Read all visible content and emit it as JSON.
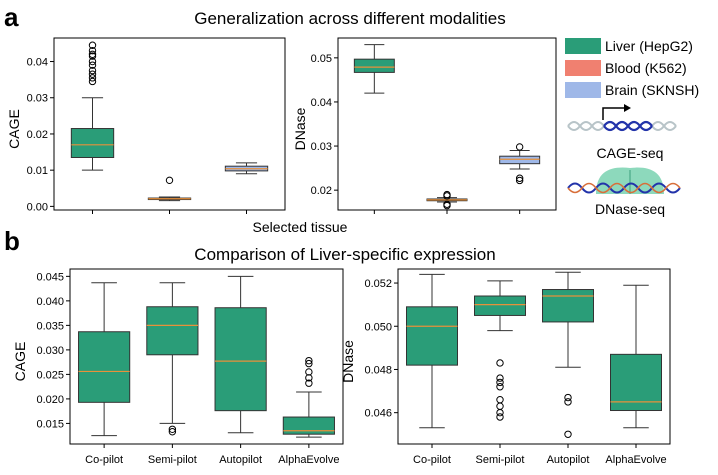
{
  "panel_labels": {
    "a": "a",
    "b": "b"
  },
  "colors": {
    "liver": "#2a9d78",
    "blood": "#f08070",
    "brain": "#9fb8e8",
    "median": "#e8913a",
    "box_edge": "#333333",
    "dna_blue": "#2233aa",
    "dna_grey": "#b8c4c8",
    "nucleosome": "#5cc9a0"
  },
  "legend": {
    "items": [
      {
        "label": "Liver (HepG2)",
        "color": "#2a9d78"
      },
      {
        "label": "Blood (K562)",
        "color": "#f08070"
      },
      {
        "label": "Brain (SKNSH)",
        "color": "#9fb8e8"
      }
    ]
  },
  "side_labels": {
    "cage_seq": "CAGE-seq",
    "dnase_seq": "DNase-seq"
  },
  "chart_data": [
    {
      "id": "a-cage",
      "type": "box",
      "title": "Generalization across different modalities",
      "xlabel": "Selected tissue",
      "ylabel": "CAGE",
      "ylim": [
        -0.001,
        0.0465
      ],
      "yticks": [
        0.0,
        0.01,
        0.02,
        0.03,
        0.04
      ],
      "ytick_labels": [
        "0.00",
        "0.01",
        "0.02",
        "0.03",
        "0.04"
      ],
      "categories": [
        "Liver (HepG2)",
        "Blood (K562)",
        "Brain (SKNSH)"
      ],
      "show_xtick_labels": false,
      "box_width": 0.55,
      "boxes": [
        {
          "color": "#2a9d78",
          "whislo": 0.01,
          "q1": 0.0135,
          "med": 0.017,
          "q3": 0.0215,
          "whishi": 0.03,
          "fliers": [
            0.0345,
            0.0355,
            0.0365,
            0.0375,
            0.039,
            0.04,
            0.0415,
            0.042,
            0.043,
            0.0445
          ]
        },
        {
          "color": "#f08070",
          "whislo": 0.0016,
          "q1": 0.0019,
          "med": 0.0021,
          "q3": 0.0023,
          "whishi": 0.0026,
          "fliers": [
            0.0072
          ]
        },
        {
          "color": "#9fb8e8",
          "whislo": 0.009,
          "q1": 0.0098,
          "med": 0.0104,
          "q3": 0.0111,
          "whishi": 0.012,
          "fliers": []
        }
      ]
    },
    {
      "id": "a-dnase",
      "type": "box",
      "title": "",
      "xlabel": "",
      "ylabel": "DNase",
      "ylim": [
        0.0155,
        0.0545
      ],
      "yticks": [
        0.02,
        0.03,
        0.04,
        0.05
      ],
      "ytick_labels": [
        "0.02",
        "0.03",
        "0.04",
        "0.05"
      ],
      "categories": [
        "Liver (HepG2)",
        "Blood (K562)",
        "Brain (SKNSH)"
      ],
      "show_xtick_labels": false,
      "box_width": 0.55,
      "boxes": [
        {
          "color": "#2a9d78",
          "whislo": 0.042,
          "q1": 0.0467,
          "med": 0.0479,
          "q3": 0.0497,
          "whishi": 0.053,
          "fliers": []
        },
        {
          "color": "#f08070",
          "whislo": 0.0173,
          "q1": 0.0176,
          "med": 0.0178,
          "q3": 0.018,
          "whishi": 0.0183,
          "fliers": [
            0.0165,
            0.0168,
            0.0187,
            0.019
          ]
        },
        {
          "color": "#9fb8e8",
          "whislo": 0.0248,
          "q1": 0.026,
          "med": 0.027,
          "q3": 0.0277,
          "whishi": 0.029,
          "fliers": [
            0.0222,
            0.0227,
            0.0298
          ]
        }
      ]
    },
    {
      "id": "b-cage",
      "type": "box",
      "title": "Comparison of Liver-specific expression",
      "xlabel": "",
      "ylabel": "CAGE",
      "ylim": [
        0.0108,
        0.0465
      ],
      "yticks": [
        0.015,
        0.02,
        0.025,
        0.03,
        0.035,
        0.04,
        0.045
      ],
      "ytick_labels": [
        "0.015",
        "0.020",
        "0.025",
        "0.030",
        "0.035",
        "0.040",
        "0.045"
      ],
      "categories": [
        "Co-pilot",
        "Semi-pilot",
        "Autopilot",
        "AlphaEvolve"
      ],
      "show_xtick_labels": true,
      "box_width": 0.75,
      "boxes": [
        {
          "color": "#2a9d78",
          "whislo": 0.0125,
          "q1": 0.0193,
          "med": 0.0256,
          "q3": 0.0337,
          "whishi": 0.0437,
          "fliers": []
        },
        {
          "color": "#2a9d78",
          "whislo": 0.015,
          "q1": 0.029,
          "med": 0.035,
          "q3": 0.0388,
          "whishi": 0.0437,
          "fliers": [
            0.0133,
            0.0138
          ]
        },
        {
          "color": "#2a9d78",
          "whislo": 0.0131,
          "q1": 0.0176,
          "med": 0.0277,
          "q3": 0.0386,
          "whishi": 0.045,
          "fliers": []
        },
        {
          "color": "#2a9d78",
          "whislo": 0.0122,
          "q1": 0.0128,
          "med": 0.0135,
          "q3": 0.0163,
          "whishi": 0.0214,
          "fliers": [
            0.0232,
            0.0243,
            0.0255,
            0.0272,
            0.0278
          ]
        }
      ]
    },
    {
      "id": "b-dnase",
      "type": "box",
      "title": "",
      "xlabel": "",
      "ylabel": "DNase",
      "ylim": [
        0.04455,
        0.05265
      ],
      "yticks": [
        0.046,
        0.048,
        0.05,
        0.052
      ],
      "ytick_labels": [
        "0.046",
        "0.048",
        "0.050",
        "0.052"
      ],
      "categories": [
        "Co-pilot",
        "Semi-pilot",
        "Autopilot",
        "AlphaEvolve"
      ],
      "show_xtick_labels": true,
      "box_width": 0.75,
      "boxes": [
        {
          "color": "#2a9d78",
          "whislo": 0.0453,
          "q1": 0.0482,
          "med": 0.05,
          "q3": 0.0509,
          "whishi": 0.0524,
          "fliers": []
        },
        {
          "color": "#2a9d78",
          "whislo": 0.0498,
          "q1": 0.0505,
          "med": 0.051,
          "q3": 0.0514,
          "whishi": 0.0521,
          "fliers": [
            0.0458,
            0.046,
            0.0463,
            0.0466,
            0.0472,
            0.0474,
            0.0476,
            0.0483
          ]
        },
        {
          "color": "#2a9d78",
          "whislo": 0.0481,
          "q1": 0.0502,
          "med": 0.0514,
          "q3": 0.0517,
          "whishi": 0.0525,
          "fliers": [
            0.045,
            0.0465,
            0.0467
          ]
        },
        {
          "color": "#2a9d78",
          "whislo": 0.0453,
          "q1": 0.0461,
          "med": 0.0465,
          "q3": 0.0487,
          "whishi": 0.0519,
          "fliers": []
        }
      ]
    }
  ]
}
